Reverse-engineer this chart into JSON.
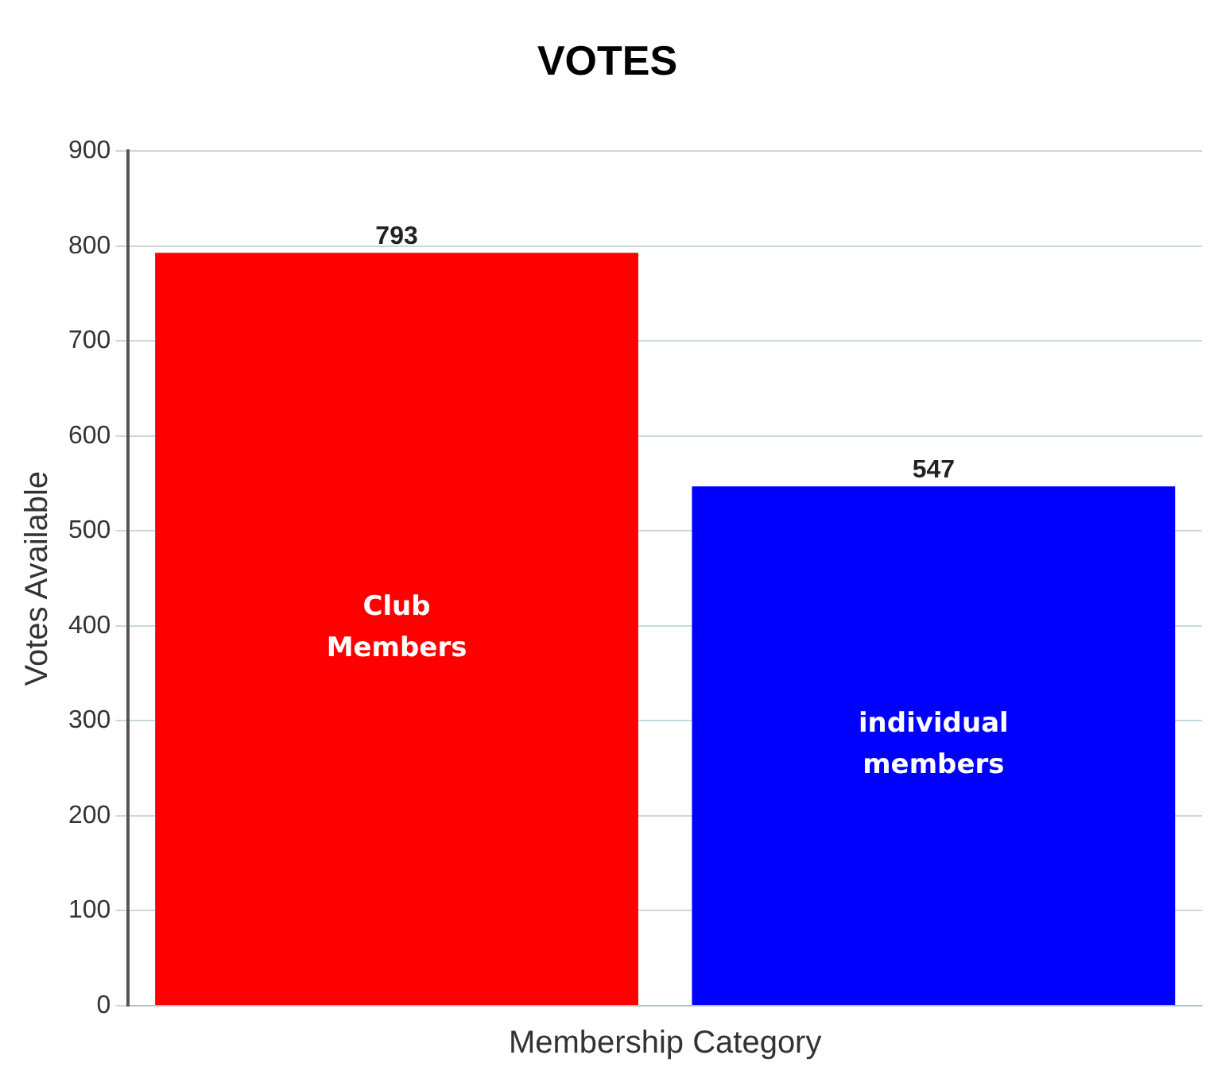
{
  "chart_data": {
    "type": "bar",
    "title": "VOTES",
    "xlabel": "Membership Category",
    "ylabel": "Votes Available",
    "categories": [
      "Club Members",
      "individual members"
    ],
    "values": [
      793,
      547
    ],
    "colors": [
      "#ff0000",
      "#0000ff"
    ],
    "ylim": [
      0,
      900
    ],
    "yticks": [
      0,
      100,
      200,
      300,
      400,
      500,
      600,
      700,
      800,
      900
    ],
    "grid": "y",
    "data_labels": true
  }
}
